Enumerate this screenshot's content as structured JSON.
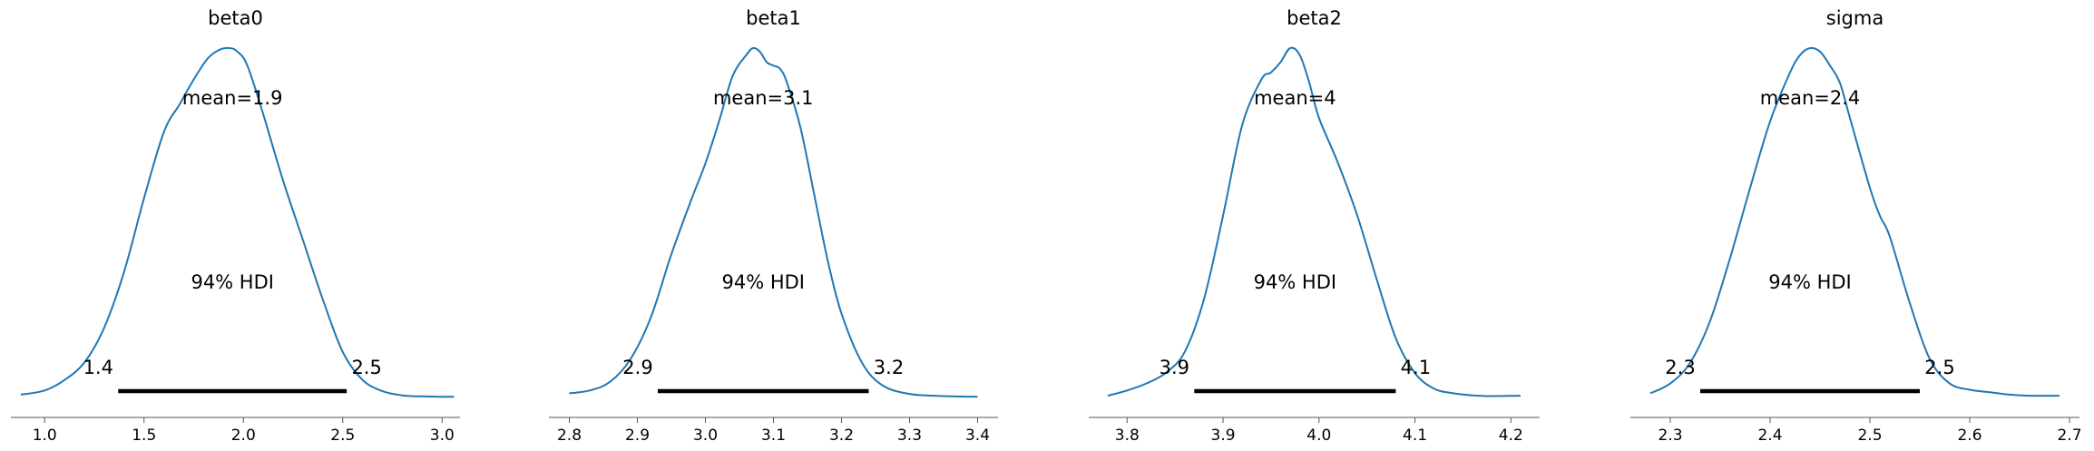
{
  "colors": {
    "density": "#1f77b4",
    "hdi_bar": "#000000",
    "axis": "#555555",
    "text": "#000000",
    "background": "#ffffff"
  },
  "chart_data": [
    {
      "type": "line",
      "title": "beta0",
      "xlim": [
        0.83,
        3.09
      ],
      "ticks": [
        1.0,
        1.5,
        2.0,
        2.5,
        3.0
      ],
      "tick_labels": [
        "1.0",
        "1.5",
        "2.0",
        "2.5",
        "3.0"
      ],
      "mean_label": "mean=1.9",
      "hdi_label": "94% HDI",
      "hdi": [
        1.37,
        2.52
      ],
      "hdi_low_label": "1.4",
      "hdi_high_label": "2.5",
      "density": {
        "x": [
          0.88,
          1.0,
          1.1,
          1.2,
          1.3,
          1.4,
          1.5,
          1.6,
          1.68,
          1.75,
          1.82,
          1.88,
          1.93,
          1.97,
          2.02,
          2.1,
          2.2,
          2.3,
          2.4,
          2.5,
          2.6,
          2.7,
          2.8,
          2.9,
          3.0,
          3.06
        ],
        "y": [
          0.008,
          0.02,
          0.05,
          0.1,
          0.2,
          0.36,
          0.57,
          0.76,
          0.84,
          0.91,
          0.97,
          0.995,
          1.0,
          0.99,
          0.95,
          0.81,
          0.62,
          0.45,
          0.28,
          0.13,
          0.05,
          0.018,
          0.006,
          0.003,
          0.002,
          0.002
        ]
      }
    },
    {
      "type": "line",
      "title": "beta1",
      "xlim": [
        2.77,
        3.43
      ],
      "ticks": [
        2.8,
        2.9,
        3.0,
        3.1,
        3.2,
        3.3,
        3.4
      ],
      "tick_labels": [
        "2.8",
        "2.9",
        "3.0",
        "3.1",
        "3.2",
        "3.3",
        "3.4"
      ],
      "mean_label": "mean=3.1",
      "hdi_label": "94% HDI",
      "hdi": [
        2.93,
        3.24
      ],
      "hdi_low_label": "2.9",
      "hdi_high_label": "3.2",
      "density": {
        "x": [
          2.8,
          2.83,
          2.86,
          2.89,
          2.92,
          2.95,
          2.98,
          3.0,
          3.02,
          3.04,
          3.06,
          3.07,
          3.08,
          3.09,
          3.1,
          3.11,
          3.12,
          3.14,
          3.16,
          3.18,
          3.2,
          3.23,
          3.26,
          3.3,
          3.35,
          3.4
        ],
        "y": [
          0.012,
          0.02,
          0.045,
          0.11,
          0.23,
          0.41,
          0.57,
          0.67,
          0.79,
          0.92,
          0.98,
          1.0,
          0.99,
          0.96,
          0.95,
          0.94,
          0.9,
          0.77,
          0.58,
          0.39,
          0.24,
          0.1,
          0.035,
          0.01,
          0.004,
          0.002
        ]
      }
    },
    {
      "type": "line",
      "title": "beta2",
      "xlim": [
        3.76,
        4.23
      ],
      "ticks": [
        3.8,
        3.9,
        4.0,
        4.1,
        4.2
      ],
      "tick_labels": [
        "3.8",
        "3.9",
        "4.0",
        "4.1",
        "4.2"
      ],
      "mean_label": "mean=4",
      "hdi_label": "94% HDI",
      "hdi": [
        3.87,
        4.08
      ],
      "hdi_low_label": "3.9",
      "hdi_high_label": "4.1",
      "density": {
        "x": [
          3.78,
          3.8,
          3.82,
          3.84,
          3.86,
          3.88,
          3.9,
          3.92,
          3.94,
          3.95,
          3.96,
          3.97,
          3.98,
          3.99,
          4.0,
          4.02,
          4.04,
          4.06,
          4.08,
          4.1,
          4.12,
          4.14,
          4.16,
          4.18,
          4.21
        ],
        "y": [
          0.005,
          0.02,
          0.04,
          0.07,
          0.13,
          0.28,
          0.52,
          0.78,
          0.91,
          0.93,
          0.96,
          1.0,
          0.98,
          0.9,
          0.8,
          0.67,
          0.52,
          0.34,
          0.17,
          0.07,
          0.025,
          0.012,
          0.006,
          0.004,
          0.005
        ]
      }
    },
    {
      "type": "line",
      "title": "sigma",
      "xlim": [
        2.26,
        2.71
      ],
      "ticks": [
        2.3,
        2.4,
        2.5,
        2.6,
        2.7
      ],
      "tick_labels": [
        "2.3",
        "2.4",
        "2.5",
        "2.6",
        "2.7"
      ],
      "mean_label": "mean=2.4",
      "hdi_label": "94% HDI",
      "hdi": [
        2.33,
        2.55
      ],
      "hdi_low_label": "2.3",
      "hdi_high_label": "2.5",
      "density": {
        "x": [
          2.28,
          2.3,
          2.32,
          2.34,
          2.36,
          2.38,
          2.4,
          2.42,
          2.43,
          2.44,
          2.45,
          2.46,
          2.47,
          2.48,
          2.5,
          2.51,
          2.52,
          2.54,
          2.56,
          2.58,
          2.6,
          2.62,
          2.64,
          2.66,
          2.69
        ],
        "y": [
          0.012,
          0.04,
          0.1,
          0.22,
          0.4,
          0.6,
          0.79,
          0.93,
          0.98,
          1.0,
          0.99,
          0.95,
          0.9,
          0.8,
          0.6,
          0.52,
          0.46,
          0.27,
          0.11,
          0.04,
          0.022,
          0.015,
          0.008,
          0.005,
          0.005
        ]
      }
    }
  ]
}
